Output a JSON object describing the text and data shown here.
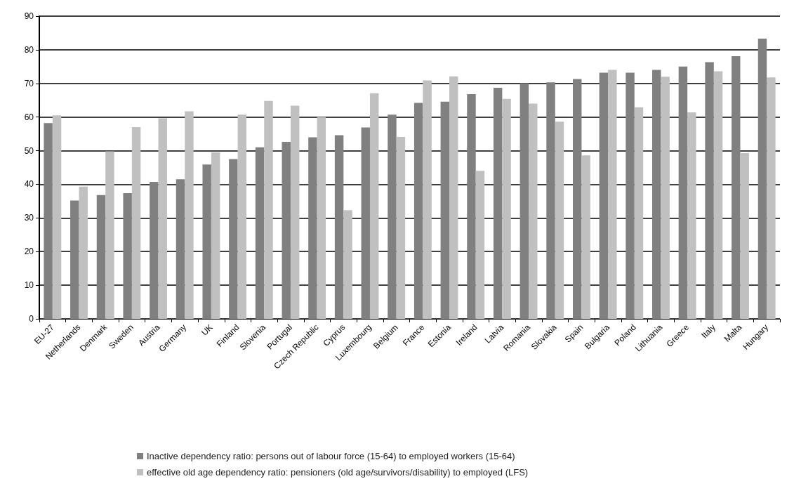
{
  "chart_data": {
    "type": "bar",
    "categories": [
      "EU-27",
      "Netherlands",
      "Denmark",
      "Sweden",
      "Austria",
      "Germany",
      "UK",
      "Finland",
      "Slovenia",
      "Portugal",
      "Czech Republic",
      "Cyprus",
      "Luxembourg",
      "Belgium",
      "France",
      "Estonia",
      "Ireland",
      "Latvia",
      "Romania",
      "Slovakia",
      "Spain",
      "Bulgaria",
      "Poland",
      "Lithuania",
      "Greece",
      "Italy",
      "Malta",
      "Hungary"
    ],
    "series": [
      {
        "name": "Inactive dependency ratio: persons out of labour force (15-64) to employed workers (15-64)",
        "color": "#808080",
        "values": [
          58.2,
          35.2,
          36.8,
          37.4,
          40.7,
          41.5,
          45.9,
          47.5,
          51.0,
          52.6,
          54.0,
          54.6,
          56.9,
          60.7,
          64.2,
          64.6,
          66.8,
          68.7,
          70.0,
          70.3,
          71.3,
          73.2,
          73.2,
          74.0,
          75.0,
          76.3,
          78.1,
          83.3
        ]
      },
      {
        "name": "effective old age dependency ratio: pensioners (old age/survivors/disability) to employed (LFS)",
        "color": "#c0c0c0",
        "values": [
          60.5,
          39.3,
          49.8,
          57.0,
          59.6,
          61.7,
          49.5,
          60.7,
          64.8,
          63.4,
          60.0,
          32.3,
          67.1,
          54.1,
          70.9,
          72.1,
          44.0,
          65.4,
          64.0,
          58.6,
          48.6,
          74.0,
          62.9,
          72.0,
          61.4,
          73.6,
          49.3,
          71.8
        ]
      }
    ],
    "ylim": [
      0,
      90
    ],
    "yticks": [
      0,
      10,
      20,
      30,
      40,
      50,
      60,
      70,
      80,
      90
    ],
    "grid": "y",
    "legend": "bottom"
  }
}
